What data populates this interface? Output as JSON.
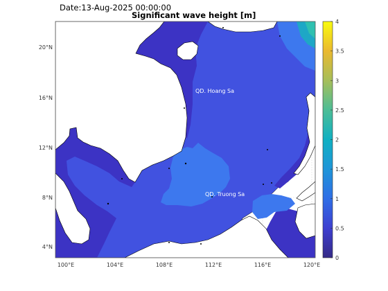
{
  "header": {
    "date_label": "Date:13-Aug-2025 00:00:00",
    "title": "Significant wave height [m]"
  },
  "map": {
    "x_ticks": [
      "100°E",
      "104°E",
      "108°E",
      "112°E",
      "116°E",
      "120°E"
    ],
    "y_ticks": [
      "20°N",
      "16°N",
      "12°N",
      "8°N",
      "4°N"
    ],
    "places": [
      {
        "name": "QD. Hoang Sa"
      },
      {
        "name": "QD. Truong Sa"
      }
    ],
    "colors": {
      "land": "#ffffff",
      "sea_low": "#3c33c4",
      "sea_mid": "#4152e0",
      "sea_high": "#3c79ef",
      "coastline": "#000000"
    }
  },
  "colorbar": {
    "ticks": [
      "4",
      "3.5",
      "3",
      "2.5",
      "2",
      "1.5",
      "1",
      "0.5",
      "0"
    ],
    "min": 0,
    "max": 4,
    "colormap": "parula"
  }
}
